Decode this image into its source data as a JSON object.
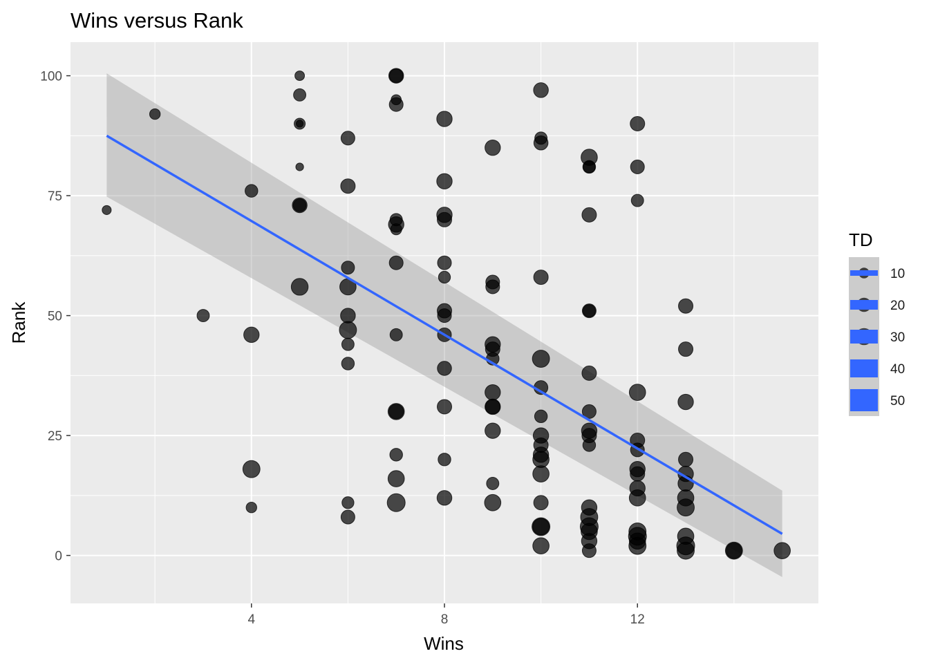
{
  "chart_data": {
    "type": "scatter",
    "title": "Wins versus Rank",
    "xlabel": "Wins",
    "ylabel": "Rank",
    "xlim": [
      0.25,
      15.75
    ],
    "ylim": [
      -10,
      107
    ],
    "x_ticks": [
      4,
      8,
      12
    ],
    "y_ticks": [
      0,
      25,
      50,
      75,
      100
    ],
    "grid": true,
    "legend": {
      "title": "TD",
      "position": "right",
      "entries": [
        "10",
        "20",
        "30",
        "40",
        "50"
      ]
    },
    "colors": {
      "panel": "#ebebeb",
      "grid": "#ffffff",
      "point": "#000000",
      "fit_line": "#3366ff",
      "ribbon": "#999999",
      "legend_key_bg": "#cccccc"
    },
    "smooth": {
      "method": "lm",
      "x": [
        1,
        15
      ],
      "y": [
        87.5,
        4.5
      ],
      "ci_lower": [
        74.8,
        -4.5
      ],
      "ci_upper": [
        100.5,
        13.5
      ]
    },
    "points": [
      {
        "x": 1,
        "y": 72,
        "td": 6
      },
      {
        "x": 2,
        "y": 92,
        "td": 9
      },
      {
        "x": 3,
        "y": 50,
        "td": 13
      },
      {
        "x": 4,
        "y": 76,
        "td": 14
      },
      {
        "x": 4,
        "y": 46,
        "td": 22
      },
      {
        "x": 4,
        "y": 18,
        "td": 28
      },
      {
        "x": 4,
        "y": 10,
        "td": 9
      },
      {
        "x": 5,
        "y": 100,
        "td": 7
      },
      {
        "x": 5,
        "y": 96,
        "td": 13
      },
      {
        "x": 5,
        "y": 90,
        "td": 10
      },
      {
        "x": 5,
        "y": 90,
        "td": 3
      },
      {
        "x": 5,
        "y": 81,
        "td": 4
      },
      {
        "x": 5,
        "y": 73,
        "td": 20
      },
      {
        "x": 5,
        "y": 73,
        "td": 14
      },
      {
        "x": 5,
        "y": 56,
        "td": 27
      },
      {
        "x": 6,
        "y": 87,
        "td": 17
      },
      {
        "x": 6,
        "y": 77,
        "td": 19
      },
      {
        "x": 6,
        "y": 60,
        "td": 15
      },
      {
        "x": 6,
        "y": 56,
        "td": 25
      },
      {
        "x": 6,
        "y": 50,
        "td": 20
      },
      {
        "x": 6,
        "y": 47,
        "td": 28
      },
      {
        "x": 6,
        "y": 44,
        "td": 13
      },
      {
        "x": 6,
        "y": 40,
        "td": 14
      },
      {
        "x": 6,
        "y": 11,
        "td": 12
      },
      {
        "x": 6,
        "y": 8,
        "td": 17
      },
      {
        "x": 7,
        "y": 100,
        "td": 20
      },
      {
        "x": 7,
        "y": 100,
        "td": 16
      },
      {
        "x": 7,
        "y": 95,
        "td": 8
      },
      {
        "x": 7,
        "y": 94,
        "td": 17
      },
      {
        "x": 7,
        "y": 70,
        "td": 13
      },
      {
        "x": 7,
        "y": 69,
        "td": 22
      },
      {
        "x": 7,
        "y": 68,
        "td": 10
      },
      {
        "x": 7,
        "y": 61,
        "td": 17
      },
      {
        "x": 7,
        "y": 46,
        "td": 13
      },
      {
        "x": 7,
        "y": 30,
        "td": 25
      },
      {
        "x": 7,
        "y": 30,
        "td": 19
      },
      {
        "x": 7,
        "y": 21,
        "td": 14
      },
      {
        "x": 7,
        "y": 16,
        "td": 25
      },
      {
        "x": 7,
        "y": 11,
        "td": 31
      },
      {
        "x": 8,
        "y": 91,
        "td": 22
      },
      {
        "x": 8,
        "y": 78,
        "td": 22
      },
      {
        "x": 8,
        "y": 71,
        "td": 22
      },
      {
        "x": 8,
        "y": 70,
        "td": 19
      },
      {
        "x": 8,
        "y": 61,
        "td": 17
      },
      {
        "x": 8,
        "y": 58,
        "td": 12
      },
      {
        "x": 8,
        "y": 51,
        "td": 19
      },
      {
        "x": 8,
        "y": 50,
        "td": 17
      },
      {
        "x": 8,
        "y": 46,
        "td": 17
      },
      {
        "x": 8,
        "y": 39,
        "td": 18
      },
      {
        "x": 8,
        "y": 31,
        "td": 19
      },
      {
        "x": 8,
        "y": 20,
        "td": 14
      },
      {
        "x": 8,
        "y": 12,
        "td": 20
      },
      {
        "x": 9,
        "y": 85,
        "td": 22
      },
      {
        "x": 9,
        "y": 57,
        "td": 17
      },
      {
        "x": 9,
        "y": 56,
        "td": 17
      },
      {
        "x": 9,
        "y": 44,
        "td": 22
      },
      {
        "x": 9,
        "y": 43,
        "td": 19
      },
      {
        "x": 9,
        "y": 41,
        "td": 14
      },
      {
        "x": 9,
        "y": 34,
        "td": 22
      },
      {
        "x": 9,
        "y": 31,
        "td": 22
      },
      {
        "x": 9,
        "y": 31,
        "td": 19
      },
      {
        "x": 9,
        "y": 26,
        "td": 22
      },
      {
        "x": 9,
        "y": 15,
        "td": 13
      },
      {
        "x": 9,
        "y": 11,
        "td": 25
      },
      {
        "x": 10,
        "y": 97,
        "td": 20
      },
      {
        "x": 10,
        "y": 87,
        "td": 13
      },
      {
        "x": 10,
        "y": 86,
        "td": 18
      },
      {
        "x": 10,
        "y": 58,
        "td": 19
      },
      {
        "x": 10,
        "y": 41,
        "td": 28
      },
      {
        "x": 10,
        "y": 35,
        "td": 17
      },
      {
        "x": 10,
        "y": 29,
        "td": 14
      },
      {
        "x": 10,
        "y": 25,
        "td": 22
      },
      {
        "x": 10,
        "y": 23,
        "td": 19
      },
      {
        "x": 10,
        "y": 21,
        "td": 22
      },
      {
        "x": 10,
        "y": 20,
        "td": 25
      },
      {
        "x": 10,
        "y": 17,
        "td": 25
      },
      {
        "x": 10,
        "y": 11,
        "td": 19
      },
      {
        "x": 10,
        "y": 6,
        "td": 31
      },
      {
        "x": 10,
        "y": 6,
        "td": 25
      },
      {
        "x": 10,
        "y": 2,
        "td": 25
      },
      {
        "x": 11,
        "y": 83,
        "td": 25
      },
      {
        "x": 11,
        "y": 81,
        "td": 14
      },
      {
        "x": 11,
        "y": 81,
        "td": 12
      },
      {
        "x": 11,
        "y": 71,
        "td": 19
      },
      {
        "x": 11,
        "y": 51,
        "td": 17
      },
      {
        "x": 11,
        "y": 51,
        "td": 13
      },
      {
        "x": 11,
        "y": 38,
        "td": 19
      },
      {
        "x": 11,
        "y": 30,
        "td": 17
      },
      {
        "x": 11,
        "y": 26,
        "td": 22
      },
      {
        "x": 11,
        "y": 25,
        "td": 19
      },
      {
        "x": 11,
        "y": 23,
        "td": 14
      },
      {
        "x": 11,
        "y": 10,
        "td": 22
      },
      {
        "x": 11,
        "y": 8,
        "td": 28
      },
      {
        "x": 11,
        "y": 6,
        "td": 31
      },
      {
        "x": 11,
        "y": 5,
        "td": 25
      },
      {
        "x": 11,
        "y": 3,
        "td": 22
      },
      {
        "x": 11,
        "y": 1,
        "td": 17
      },
      {
        "x": 12,
        "y": 90,
        "td": 19
      },
      {
        "x": 12,
        "y": 81,
        "td": 17
      },
      {
        "x": 12,
        "y": 74,
        "td": 13
      },
      {
        "x": 12,
        "y": 34,
        "td": 25
      },
      {
        "x": 12,
        "y": 24,
        "td": 19
      },
      {
        "x": 12,
        "y": 22,
        "td": 17
      },
      {
        "x": 12,
        "y": 18,
        "td": 22
      },
      {
        "x": 12,
        "y": 17,
        "td": 19
      },
      {
        "x": 12,
        "y": 14,
        "td": 22
      },
      {
        "x": 12,
        "y": 12,
        "td": 25
      },
      {
        "x": 12,
        "y": 5,
        "td": 28
      },
      {
        "x": 12,
        "y": 4,
        "td": 31
      },
      {
        "x": 12,
        "y": 3,
        "td": 25
      },
      {
        "x": 12,
        "y": 2,
        "td": 28
      },
      {
        "x": 13,
        "y": 52,
        "td": 19
      },
      {
        "x": 13,
        "y": 43,
        "td": 19
      },
      {
        "x": 13,
        "y": 32,
        "td": 22
      },
      {
        "x": 13,
        "y": 20,
        "td": 19
      },
      {
        "x": 13,
        "y": 17,
        "td": 22
      },
      {
        "x": 13,
        "y": 15,
        "td": 22
      },
      {
        "x": 13,
        "y": 12,
        "td": 25
      },
      {
        "x": 13,
        "y": 10,
        "td": 28
      },
      {
        "x": 13,
        "y": 4,
        "td": 25
      },
      {
        "x": 13,
        "y": 2,
        "td": 31
      },
      {
        "x": 13,
        "y": 1,
        "td": 28
      },
      {
        "x": 14,
        "y": 1,
        "td": 28
      },
      {
        "x": 14,
        "y": 1,
        "td": 22
      },
      {
        "x": 15,
        "y": 1,
        "td": 25
      }
    ]
  }
}
